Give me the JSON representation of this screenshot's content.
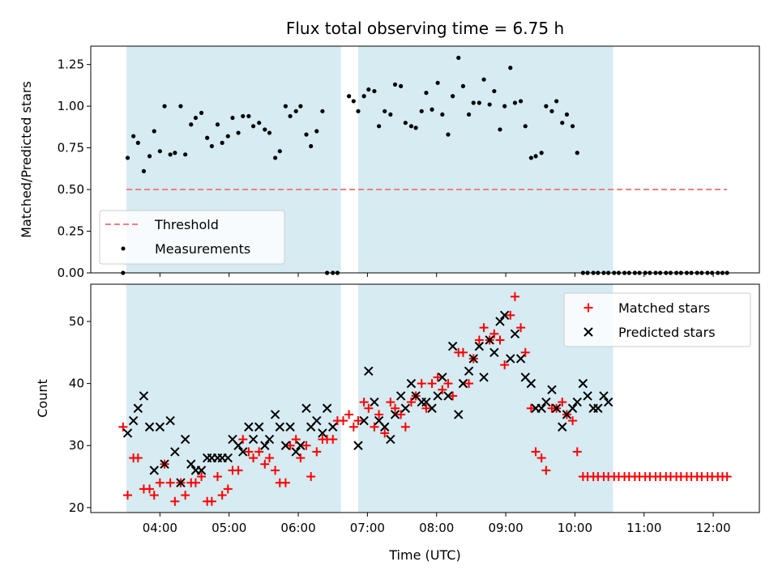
{
  "chart_data": [
    {
      "type": "scatter",
      "title": "Flux total observing time = 6.75 h",
      "ylabel": "Matched/Predicted stars",
      "ylim": [
        0,
        1.36
      ],
      "yticks": [
        "0.00",
        "0.25",
        "0.50",
        "0.75",
        "1.00",
        "1.25"
      ],
      "xlim": [
        "03:00",
        "12:40"
      ],
      "shaded_spans": [
        [
          "03:31",
          "06:37"
        ],
        [
          "06:52",
          "10:33"
        ]
      ],
      "threshold": {
        "name": "Threshold",
        "value": 0.5,
        "x": [
          "03:31",
          "12:12"
        ],
        "color": "#f08080"
      },
      "legend": {
        "placement": "lower-left",
        "entries": [
          "Threshold",
          "Measurements"
        ]
      },
      "series": [
        {
          "name": "Measurements",
          "marker": "dot",
          "color": "#000000",
          "x": [
            "03:28",
            "03:32",
            "03:37",
            "03:41",
            "03:46",
            "03:51",
            "03:55",
            "04:00",
            "04:04",
            "04:09",
            "04:13",
            "04:18",
            "04:22",
            "04:27",
            "04:31",
            "04:36",
            "04:41",
            "04:45",
            "04:50",
            "04:54",
            "04:59",
            "05:03",
            "05:08",
            "05:12",
            "05:17",
            "05:21",
            "05:26",
            "05:31",
            "05:35",
            "05:40",
            "05:44",
            "05:49",
            "05:53",
            "05:58",
            "06:02",
            "06:07",
            "06:11",
            "06:16",
            "06:21",
            "06:25",
            "06:30",
            "06:34",
            "06:44",
            "06:48",
            "06:52",
            "06:57",
            "07:01",
            "07:06",
            "07:10",
            "07:15",
            "07:20",
            "07:24",
            "07:29",
            "07:33",
            "07:38",
            "07:42",
            "07:47",
            "07:51",
            "07:56",
            "08:01",
            "08:05",
            "08:10",
            "08:14",
            "08:19",
            "08:23",
            "08:28",
            "08:32",
            "08:37",
            "08:41",
            "08:46",
            "08:50",
            "08:55",
            "08:59",
            "09:04",
            "09:08",
            "09:13",
            "09:17",
            "09:22",
            "09:26",
            "09:31",
            "09:35",
            "09:40",
            "09:44",
            "09:49",
            "09:53",
            "09:58",
            "10:02",
            "10:07",
            "10:11",
            "10:16",
            "10:20",
            "10:25",
            "10:29",
            "10:34",
            "10:38",
            "10:43",
            "10:47",
            "10:52",
            "10:56",
            "11:01",
            "11:05",
            "11:10",
            "11:14",
            "11:19",
            "11:23",
            "11:28",
            "11:32",
            "11:37",
            "11:41",
            "11:46",
            "11:50",
            "11:55",
            "11:59",
            "12:04",
            "12:08",
            "12:12"
          ],
          "y": [
            0.0,
            0.69,
            0.82,
            0.78,
            0.61,
            0.7,
            0.85,
            0.73,
            1.0,
            0.71,
            0.72,
            1.0,
            0.71,
            0.89,
            0.93,
            0.96,
            0.81,
            0.76,
            0.89,
            0.78,
            0.82,
            0.93,
            0.84,
            0.94,
            0.94,
            0.88,
            0.9,
            0.86,
            0.84,
            0.69,
            0.73,
            1.0,
            0.94,
            0.97,
            1.0,
            0.83,
            0.76,
            0.85,
            0.97,
            0.0,
            0.0,
            0.0,
            1.06,
            1.03,
            0.97,
            1.06,
            1.1,
            1.09,
            0.88,
            0.97,
            0.95,
            1.13,
            1.12,
            0.9,
            0.88,
            0.87,
            0.97,
            1.08,
            0.98,
            1.14,
            0.95,
            0.83,
            1.06,
            1.29,
            1.12,
            0.95,
            1.02,
            1.02,
            1.16,
            1.01,
            1.09,
            0.86,
            1.0,
            1.23,
            1.02,
            1.03,
            0.88,
            0.69,
            0.7,
            0.72,
            1.0,
            0.97,
            1.03,
            0.9,
            0.95,
            0.88,
            0.72,
            0.0,
            0.0,
            0.0,
            0.0,
            0.0,
            0.0,
            0.0,
            0.0,
            0.0,
            0.0,
            0.0,
            0.0,
            0.0,
            0.0,
            0.0,
            0.0,
            0.0,
            0.0,
            0.0,
            0.0,
            0.0,
            0.0,
            0.0,
            0.0,
            0.0,
            0.0,
            0.0,
            0.0,
            0.0
          ]
        }
      ]
    },
    {
      "type": "scatter",
      "title": "",
      "xlabel": "Time (UTC)",
      "ylabel": "Count",
      "ylim": [
        19.2,
        56
      ],
      "yticks": [
        "20",
        "30",
        "40",
        "50"
      ],
      "xlim": [
        "03:00",
        "12:40"
      ],
      "xticks": [
        "04:00",
        "05:00",
        "06:00",
        "07:00",
        "08:00",
        "09:00",
        "10:00",
        "11:00",
        "12:00"
      ],
      "shaded_spans": [
        [
          "03:31",
          "06:37"
        ],
        [
          "06:52",
          "10:33"
        ]
      ],
      "legend": {
        "placement": "top-right",
        "entries": [
          "Matched stars",
          "Predicted stars"
        ]
      },
      "series": [
        {
          "name": "Matched stars",
          "marker": "plus",
          "color": "#ff0000",
          "x": [
            "03:28",
            "03:32",
            "03:37",
            "03:41",
            "03:46",
            "03:51",
            "03:55",
            "04:00",
            "04:04",
            "04:09",
            "04:13",
            "04:18",
            "04:22",
            "04:27",
            "04:31",
            "04:36",
            "04:41",
            "04:45",
            "04:50",
            "04:54",
            "04:59",
            "05:03",
            "05:08",
            "05:12",
            "05:17",
            "05:21",
            "05:26",
            "05:31",
            "05:35",
            "05:40",
            "05:44",
            "05:49",
            "05:53",
            "05:58",
            "06:02",
            "06:07",
            "06:11",
            "06:16",
            "06:21",
            "06:25",
            "06:30",
            "06:34",
            "06:39",
            "06:44",
            "06:48",
            "06:52",
            "06:57",
            "07:01",
            "07:06",
            "07:10",
            "07:15",
            "07:20",
            "07:24",
            "07:29",
            "07:33",
            "07:38",
            "07:42",
            "07:47",
            "07:51",
            "07:56",
            "08:01",
            "08:05",
            "08:10",
            "08:14",
            "08:19",
            "08:23",
            "08:28",
            "08:32",
            "08:37",
            "08:41",
            "08:46",
            "08:50",
            "08:55",
            "08:59",
            "09:04",
            "09:08",
            "09:13",
            "09:17",
            "09:22",
            "09:26",
            "09:31",
            "09:35",
            "09:40",
            "09:44",
            "09:49",
            "09:53",
            "09:58",
            "10:02",
            "10:07",
            "10:11",
            "10:16",
            "10:20",
            "10:25",
            "10:29",
            "10:34",
            "10:38",
            "10:43",
            "10:47",
            "10:52",
            "10:56",
            "11:01",
            "11:05",
            "11:10",
            "11:14",
            "11:19",
            "11:23",
            "11:28",
            "11:32",
            "11:37",
            "11:41",
            "11:46",
            "11:50",
            "11:55",
            "11:59",
            "12:04",
            "12:08",
            "12:12"
          ],
          "y": [
            33,
            22,
            28,
            28,
            23,
            23,
            22,
            24,
            27,
            24,
            21,
            24,
            22,
            24,
            24,
            25,
            21,
            21,
            25,
            22,
            23,
            26,
            26,
            31,
            29,
            28,
            29,
            27,
            28,
            26,
            24,
            24,
            30,
            31,
            28,
            30,
            25,
            29,
            31,
            31,
            31,
            34,
            34,
            35,
            33,
            34,
            37,
            36,
            33,
            35,
            32,
            37,
            36,
            35,
            33,
            37,
            38,
            40,
            36,
            40,
            41,
            39,
            40,
            38,
            45,
            45,
            40,
            44,
            47,
            49,
            47,
            48,
            47,
            43,
            51,
            54,
            49,
            45,
            36,
            29,
            28,
            26,
            36,
            36,
            37,
            35,
            34,
            29,
            25,
            25,
            25,
            25,
            25,
            25,
            25,
            25,
            25,
            25,
            25,
            25,
            25,
            25,
            25,
            25,
            25,
            25,
            25,
            25,
            25,
            25,
            25,
            25,
            25,
            25,
            25,
            25,
            25
          ]
        },
        {
          "name": "Predicted stars",
          "marker": "x",
          "color": "#000000",
          "x": [
            "03:32",
            "03:37",
            "03:41",
            "03:46",
            "03:51",
            "03:55",
            "04:00",
            "04:04",
            "04:09",
            "04:13",
            "04:18",
            "04:22",
            "04:27",
            "04:31",
            "04:36",
            "04:41",
            "04:45",
            "04:50",
            "04:54",
            "04:59",
            "05:03",
            "05:08",
            "05:12",
            "05:17",
            "05:21",
            "05:26",
            "05:31",
            "05:35",
            "05:40",
            "05:44",
            "05:49",
            "05:53",
            "05:58",
            "06:02",
            "06:07",
            "06:11",
            "06:16",
            "06:21",
            "06:25",
            "06:30",
            "06:52",
            "06:57",
            "07:01",
            "07:06",
            "07:10",
            "07:15",
            "07:20",
            "07:24",
            "07:29",
            "07:33",
            "07:38",
            "07:42",
            "07:47",
            "07:51",
            "07:56",
            "08:01",
            "08:05",
            "08:10",
            "08:14",
            "08:19",
            "08:23",
            "08:28",
            "08:32",
            "08:37",
            "08:41",
            "08:46",
            "08:50",
            "08:55",
            "08:59",
            "09:04",
            "09:08",
            "09:13",
            "09:17",
            "09:22",
            "09:26",
            "09:31",
            "09:35",
            "09:40",
            "09:44",
            "09:49",
            "09:53",
            "09:58",
            "10:02",
            "10:07",
            "10:11",
            "10:16",
            "10:20",
            "10:25",
            "10:29"
          ],
          "y": [
            32,
            34,
            36,
            38,
            33,
            26,
            33,
            27,
            34,
            29,
            24,
            31,
            27,
            26,
            26,
            28,
            28,
            28,
            28,
            28,
            31,
            30,
            29,
            33,
            31,
            33,
            30,
            31,
            35,
            33,
            30,
            33,
            29,
            30,
            36,
            33,
            34,
            32,
            36,
            33,
            30,
            34,
            42,
            37,
            34,
            33,
            31,
            35,
            38,
            36,
            40,
            38,
            37,
            37,
            36,
            38,
            41,
            38,
            46,
            35,
            40,
            42,
            44,
            46,
            41,
            47,
            45,
            50,
            51,
            44,
            48,
            44,
            41,
            40,
            36,
            36,
            37,
            39,
            36,
            33,
            35,
            36,
            37,
            40,
            38,
            36,
            36,
            38,
            37
          ]
        }
      ]
    }
  ]
}
